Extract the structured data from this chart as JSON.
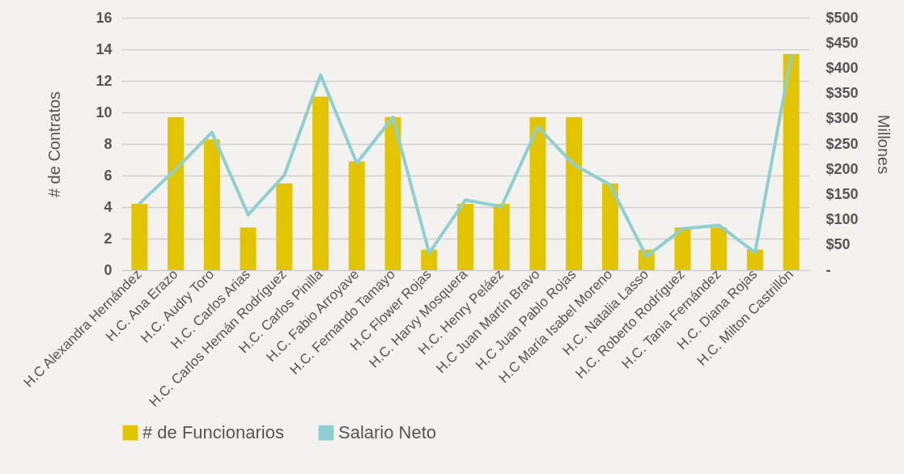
{
  "chart_data": {
    "type": "bar",
    "categories": [
      "H.C Alexandra Hernández",
      "H.C. Ana Erazo",
      "H.C. Audry Toro",
      "H.C. Carlos Arias",
      "H.C. Carlos Hernán Rodríguez",
      "H.C. Carlos Pinilla",
      "H.C. Fabio Arroyave",
      "H.C. Fernando Tamayo",
      "H.C Flower Rojas",
      "H.C. Harvy Mosquera",
      "H.C. Henry Peláez",
      "H.C Juan Martín Bravo",
      "H.C Juan Pablo Rojas",
      "H.C María Isabel Moreno",
      "H.C. Natalia Lasso",
      "H.C. Roberto Rodríguez",
      "H.C. Tania Fernández",
      "H.C. Diana Rojas",
      "H.C. Milton Castrillón"
    ],
    "series": [
      {
        "name": "# de Funcionarios",
        "color": "#e2c400",
        "values": [
          4.2,
          9.7,
          8.3,
          2.7,
          5.5,
          11,
          6.9,
          9.7,
          1.3,
          4.2,
          4.2,
          9.7,
          9.7,
          5.5,
          1.3,
          2.7,
          2.7,
          1.3,
          13.7
        ]
      },
      {
        "name": "Salario Neto",
        "type": "line",
        "axis": "y2",
        "color": "#8ecfcf",
        "values": [
          132,
          200,
          273,
          110,
          188,
          387,
          212,
          303,
          34,
          139,
          126,
          284,
          209,
          169,
          27,
          82,
          89,
          35,
          424
        ]
      }
    ],
    "ylabel": "# de Contratos",
    "y2label": "Millones",
    "ylim": [
      0,
      16
    ],
    "yticks": [
      0,
      2,
      4,
      6,
      8,
      10,
      12,
      14,
      16
    ],
    "y2lim": [
      0,
      500
    ],
    "y2ticks": [
      {
        "value": 0,
        "label": "-"
      },
      {
        "value": 50,
        "label": "$50"
      },
      {
        "value": 100,
        "label": "$100"
      },
      {
        "value": 150,
        "label": "$150"
      },
      {
        "value": 200,
        "label": "$200"
      },
      {
        "value": 250,
        "label": "$250"
      },
      {
        "value": 300,
        "label": "$300"
      },
      {
        "value": 350,
        "label": "$350"
      },
      {
        "value": 400,
        "label": "$400"
      },
      {
        "value": 450,
        "label": "$450"
      },
      {
        "value": 500,
        "label": "$500"
      }
    ],
    "grid": "y",
    "legend": "bottom"
  }
}
